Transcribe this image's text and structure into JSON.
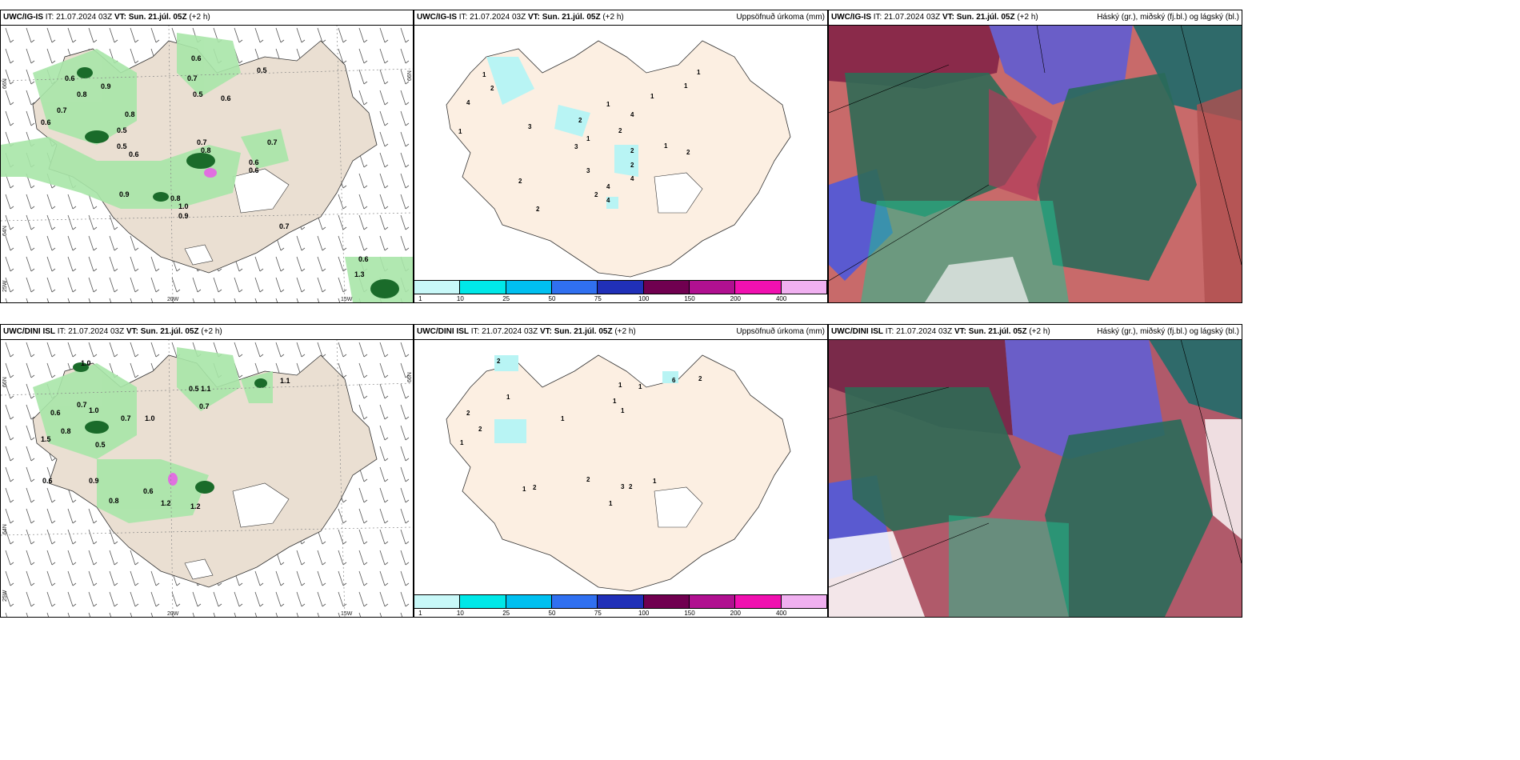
{
  "panels": [
    {
      "model": "UWC/IG-IS",
      "it_label": "IT:",
      "it_value": "21.07.2024 03Z",
      "vt_label": "VT:",
      "vt_value": "Sun. 21.júl. 05Z",
      "lead": "(+2 h)",
      "right": ""
    },
    {
      "model": "UWC/IG-IS",
      "it_label": "IT:",
      "it_value": "21.07.2024 03Z",
      "vt_label": "VT:",
      "vt_value": "Sun. 21.júl. 05Z",
      "lead": "(+2 h)",
      "right": "Uppsöfnuð úrkoma (mm)"
    },
    {
      "model": "UWC/IG-IS",
      "it_label": "IT:",
      "it_value": "21.07.2024 03Z",
      "vt_label": "VT:",
      "vt_value": "Sun. 21.júl. 05Z",
      "lead": "(+2 h)",
      "right": "Háský (gr.), miðský (fj.bl.) og lágský (bl.)"
    },
    {
      "model": "UWC/DINI ISL",
      "it_label": "IT:",
      "it_value": "21.07.2024 03Z",
      "vt_label": "VT:",
      "vt_value": "Sun. 21.júl. 05Z",
      "lead": "(+2 h)",
      "right": ""
    },
    {
      "model": "UWC/DINI ISL",
      "it_label": "IT:",
      "it_value": "21.07.2024 03Z",
      "vt_label": "VT:",
      "vt_value": "Sun. 21.júl. 05Z",
      "lead": "(+2 h)",
      "right": "Uppsöfnuð úrkoma (mm)"
    },
    {
      "model": "UWC/DINI ISL",
      "it_label": "IT:",
      "it_value": "21.07.2024 03Z",
      "vt_label": "VT:",
      "vt_value": "Sun. 21.júl. 05Z",
      "lead": "(+2 h)",
      "right": "Háský (gr.), miðský (fj.bl.) og lágský (bl.)"
    }
  ],
  "axes": {
    "lat66": "66N",
    "lat64": "64N",
    "lon25": "25W",
    "lon20": "20W",
    "lon15": "15W"
  },
  "legend": {
    "colors": [
      "#c8f8f8",
      "#00e8e8",
      "#00c0f0",
      "#3070f0",
      "#2030b8",
      "#700050",
      "#b01090",
      "#f010b0",
      "#f0b0f0"
    ],
    "ticks": [
      "1",
      "10",
      "25",
      "50",
      "75",
      "100",
      "150",
      "200",
      "400"
    ]
  },
  "precip_values_top": [
    "0.6",
    "0.8",
    "0.9",
    "0.7",
    "0.5",
    "0.6",
    "0.8",
    "0.7",
    "0.8",
    "0.5",
    "0.6",
    "0.7",
    "0.5",
    "0.6",
    "0.8",
    "0.9",
    "1.0",
    "0.9",
    "0.6",
    "0.7",
    "0.6",
    "0.6",
    "0.5",
    "0.7",
    "0.6",
    "1.3"
  ],
  "precip_values_bottom": [
    "1.0",
    "0.7",
    "1.0",
    "0.6",
    "0.8",
    "0.5",
    "0.7",
    "1.0",
    "0.9",
    "0.6",
    "0.8",
    "1.2",
    "1.2",
    "0.6",
    "0.5",
    "1.1",
    "1.1",
    "1.5",
    "0.7"
  ],
  "accum_values_top": [
    "1",
    "2",
    "4",
    "3",
    "2",
    "1",
    "4",
    "2",
    "1",
    "3",
    "1",
    "2",
    "4",
    "2",
    "2",
    "3",
    "4",
    "1",
    "2",
    "1",
    "1",
    "1",
    "2",
    "4",
    "2"
  ],
  "accum_values_bottom": [
    "2",
    "1",
    "2",
    "2",
    "1",
    "1",
    "1",
    "2",
    "6",
    "1",
    "1",
    "1",
    "2",
    "1",
    "2",
    "3",
    "2",
    "1",
    "1"
  ]
}
